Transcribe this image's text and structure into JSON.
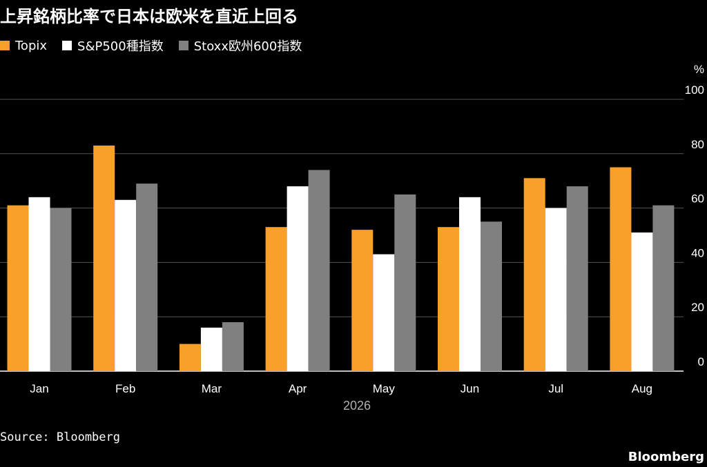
{
  "chart_data": {
    "type": "bar",
    "title": "上昇銘柄比率で日本は欧米を直近上回る",
    "unit": "%",
    "x_group_label": "2026",
    "categories": [
      "Jan",
      "Feb",
      "Mar",
      "Apr",
      "May",
      "Jun",
      "Jul",
      "Aug"
    ],
    "series": [
      {
        "name": "Topix",
        "color": "#F8A02A",
        "values": [
          61,
          83,
          10,
          53,
          52,
          53,
          71,
          75
        ]
      },
      {
        "name": "S&P500種指数",
        "color": "#FFFFFF",
        "values": [
          64,
          63,
          16,
          68,
          43,
          64,
          60,
          51
        ]
      },
      {
        "name": "Stoxx欧州600指数",
        "color": "#808080",
        "values": [
          60,
          69,
          18,
          74,
          65,
          55,
          68,
          61
        ]
      }
    ],
    "ylim": [
      0,
      100
    ],
    "yticks": [
      0,
      20,
      40,
      60,
      80,
      100
    ],
    "grid": true,
    "legend_position": "top-left",
    "yaxis_position": "right"
  },
  "source": "Source: Bloomberg",
  "brand": "Bloomberg"
}
